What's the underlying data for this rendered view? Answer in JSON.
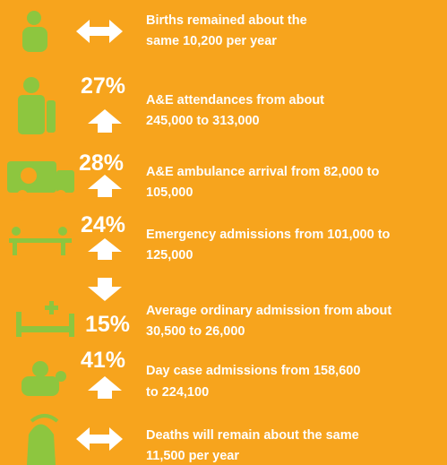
{
  "items": [
    {
      "percent": null,
      "lines": [
        "Births remained about the",
        "same 10,200 per year"
      ]
    },
    {
      "percent": "27%",
      "lines": [
        "A&E attendances from about",
        "245,000 to 313,000"
      ]
    },
    {
      "percent": "28%",
      "lines": [
        "A&E ambulance arrival from 82,000 to",
        "105,000"
      ]
    },
    {
      "percent": "24%",
      "lines": [
        "Emergency admissions from 101,000 to",
        "125,000"
      ]
    },
    {
      "percent": "15%",
      "lines": [
        "Average ordinary admission from about",
        "30,500 to 26,000"
      ]
    },
    {
      "percent": "41%",
      "lines": [
        "Day case admissions from 158,600",
        "to 224,100"
      ]
    },
    {
      "percent": null,
      "lines": [
        "Deaths will remain about the same",
        "11,500 per year"
      ]
    }
  ]
}
